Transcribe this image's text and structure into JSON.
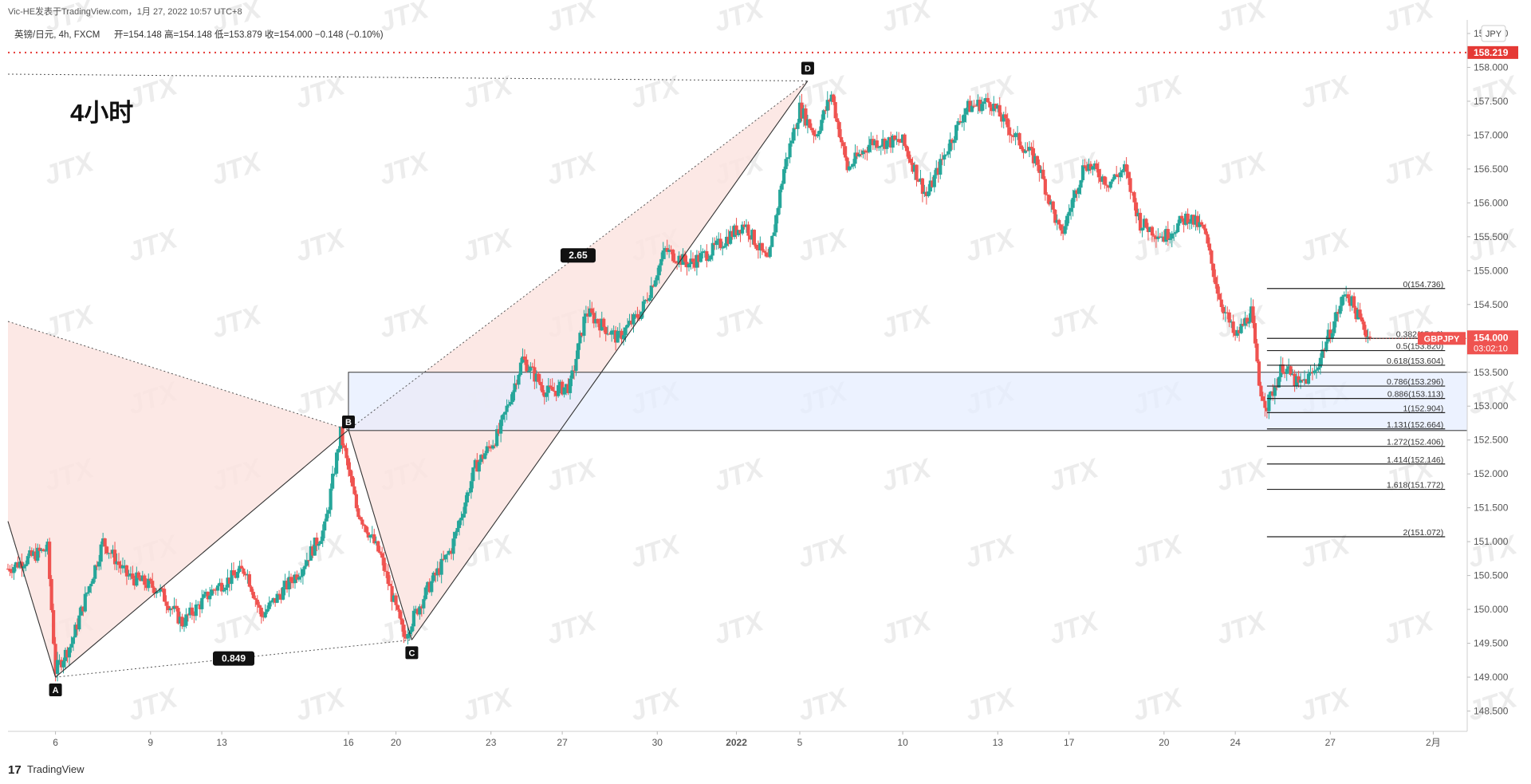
{
  "header": {
    "publisher": "Vic-HE发表于TradingView.com，1月 27, 2022 10:57 UTC+8",
    "symbol": "英镑/日元, 4h, FXCM",
    "ohlc": "开=154.148  高=154.148  低=153.879  收=154.000  −0.148 (−0.10%)"
  },
  "annotation_title": "4小时",
  "currency_badge": "JPY",
  "watermark_text": "JTX",
  "footer_brand": "TradingView",
  "footer_logo_text": "17",
  "chart_data": {
    "type": "candlestick",
    "symbol": "GBPJPY",
    "timeframe": "4h",
    "y_axis": {
      "range": [
        148.2,
        158.7
      ],
      "ticks": [
        "158.500",
        "158.000",
        "157.500",
        "157.000",
        "156.500",
        "156.000",
        "155.500",
        "155.000",
        "154.500",
        "154.000",
        "153.500",
        "153.000",
        "152.500",
        "152.000",
        "151.500",
        "151.000",
        "150.500",
        "150.000",
        "149.500",
        "149.000",
        "148.500"
      ]
    },
    "x_axis": {
      "ticks": [
        {
          "label": "6",
          "bar": 6
        },
        {
          "label": "9",
          "bar": 18
        },
        {
          "label": "13",
          "bar": 27
        },
        {
          "label": "16",
          "bar": 43
        },
        {
          "label": "20",
          "bar": 49
        },
        {
          "label": "23",
          "bar": 61
        },
        {
          "label": "27",
          "bar": 70
        },
        {
          "label": "30",
          "bar": 82
        },
        {
          "label": "2022",
          "bar": 92
        },
        {
          "label": "5",
          "bar": 100
        },
        {
          "label": "10",
          "bar": 113
        },
        {
          "label": "13",
          "bar": 125
        },
        {
          "label": "17",
          "bar": 134
        },
        {
          "label": "20",
          "bar": 146
        },
        {
          "label": "24",
          "bar": 155
        },
        {
          "label": "27",
          "bar": 167
        },
        {
          "label": "2月",
          "bar": 180
        }
      ]
    },
    "close_path": [
      [
        0,
        150.6
      ],
      [
        5,
        150.9
      ],
      [
        6,
        149.1
      ],
      [
        8,
        149.5
      ],
      [
        12,
        151.0
      ],
      [
        15,
        150.5
      ],
      [
        19,
        150.3
      ],
      [
        22,
        149.8
      ],
      [
        26,
        150.3
      ],
      [
        30,
        150.6
      ],
      [
        32,
        149.9
      ],
      [
        37,
        150.6
      ],
      [
        40,
        151.2
      ],
      [
        42,
        152.6
      ],
      [
        44,
        151.5
      ],
      [
        47,
        150.8
      ],
      [
        50,
        149.6
      ],
      [
        53,
        150.3
      ],
      [
        56,
        150.9
      ],
      [
        59,
        152.1
      ],
      [
        62,
        152.6
      ],
      [
        65,
        153.7
      ],
      [
        68,
        153.2
      ],
      [
        71,
        153.3
      ],
      [
        73,
        154.4
      ],
      [
        77,
        154.0
      ],
      [
        80,
        154.4
      ],
      [
        83,
        155.3
      ],
      [
        86,
        155.1
      ],
      [
        89,
        155.3
      ],
      [
        93,
        155.7
      ],
      [
        96,
        155.1
      ],
      [
        98,
        156.5
      ],
      [
        100,
        157.4
      ],
      [
        102,
        157.0
      ],
      [
        104,
        157.6
      ],
      [
        106,
        156.5
      ],
      [
        109,
        156.9
      ],
      [
        113,
        156.9
      ],
      [
        116,
        156.1
      ],
      [
        119,
        156.9
      ],
      [
        121,
        157.4
      ],
      [
        124,
        157.5
      ],
      [
        127,
        157.0
      ],
      [
        130,
        156.6
      ],
      [
        133,
        155.5
      ],
      [
        136,
        156.6
      ],
      [
        139,
        156.3
      ],
      [
        141,
        156.5
      ],
      [
        143,
        155.7
      ],
      [
        146,
        155.5
      ],
      [
        149,
        155.8
      ],
      [
        151,
        155.6
      ],
      [
        153,
        154.6
      ],
      [
        155,
        154.0
      ],
      [
        157,
        154.4
      ],
      [
        158,
        153.3
      ],
      [
        159,
        153.0
      ],
      [
        161,
        153.6
      ],
      [
        163,
        153.3
      ],
      [
        165,
        153.5
      ],
      [
        167,
        154.1
      ],
      [
        169,
        154.7
      ],
      [
        171,
        154.2
      ],
      [
        172,
        154.0
      ]
    ],
    "pattern": {
      "type": "harmonic XABCD",
      "points": [
        {
          "label": "A",
          "bar": 6,
          "price": 149.0
        },
        {
          "label": "B",
          "bar": 43,
          "price": 152.65
        },
        {
          "label": "C",
          "bar": 51,
          "price": 149.55
        },
        {
          "label": "D",
          "bar": 101,
          "price": 157.8
        }
      ],
      "ratios": [
        {
          "label": "2.65",
          "between": "B-D"
        },
        {
          "label": "0.849",
          "between": "A-C"
        }
      ]
    },
    "horizontal_lines": [
      {
        "price": 158.219,
        "label": "158.219",
        "style": "dotted",
        "color": "#e53935"
      }
    ],
    "zone": {
      "top": 153.5,
      "bottom": 152.64,
      "from_bar": 43
    },
    "fib_levels": [
      {
        "ratio": "0",
        "price": "154.736"
      },
      {
        "ratio": "0.382",
        "price": "154.0"
      },
      {
        "ratio": "0.5",
        "price": "153.820"
      },
      {
        "ratio": "0.618",
        "price": "153.604"
      },
      {
        "ratio": "0.786",
        "price": "153.296"
      },
      {
        "ratio": "0.886",
        "price": "153.113"
      },
      {
        "ratio": "1",
        "price": "152.904"
      },
      {
        "ratio": "1.131",
        "price": "152.664"
      },
      {
        "ratio": "1.272",
        "price": "152.406"
      },
      {
        "ratio": "1.414",
        "price": "152.146"
      },
      {
        "ratio": "1.618",
        "price": "151.772"
      },
      {
        "ratio": "2",
        "price": "151.072"
      }
    ],
    "last_price": {
      "symbol": "GBPJPY",
      "price": "154.000",
      "countdown": "03:02:10"
    },
    "colors": {
      "up": "#26a69a",
      "down": "#ef5350",
      "fill": "#fce4e0",
      "zone": "#e6eeff"
    }
  }
}
